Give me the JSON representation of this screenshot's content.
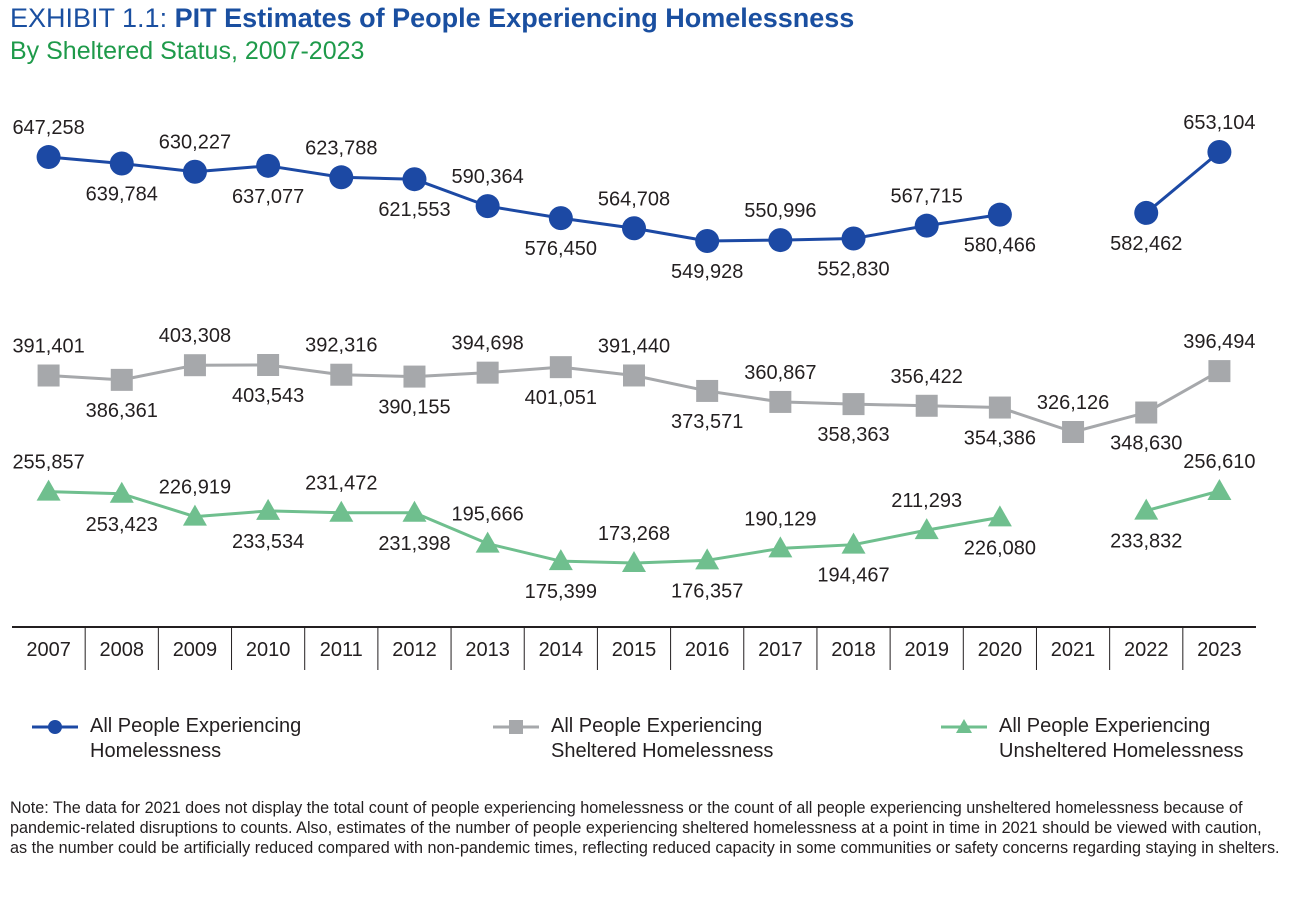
{
  "header": {
    "title_prefix": "EXHIBIT 1.1: ",
    "title_main": "PIT Estimates of People Experiencing Homelessness",
    "subtitle": "By Sheltered Status, 2007-2023"
  },
  "colors": {
    "total": "#1c49a4",
    "sheltered": "#a6a8ab",
    "unsheltered": "#6fbf8e",
    "title": "#1a4fa0",
    "subtitle": "#1e9a4a",
    "axis": "#231f20"
  },
  "chart_data": {
    "type": "line",
    "categories": [
      "2007",
      "2008",
      "2009",
      "2010",
      "2011",
      "2012",
      "2013",
      "2014",
      "2015",
      "2016",
      "2017",
      "2018",
      "2019",
      "2020",
      "2021",
      "2022",
      "2023"
    ],
    "series": [
      {
        "name": "All People Experiencing Homelessness",
        "key": "total",
        "marker": "circle",
        "values": [
          647258,
          639784,
          630227,
          637077,
          623788,
          621553,
          590364,
          576450,
          564708,
          549928,
          550996,
          552830,
          567715,
          580466,
          null,
          582462,
          653104
        ],
        "labels": [
          "647,258",
          "639,784",
          "630,227",
          "637,077",
          "623,788",
          "621,553",
          "590,364",
          "576,450",
          "564,708",
          "549,928",
          "550,996",
          "552,830",
          "567,715",
          "580,466",
          "",
          "582,462",
          "653,104"
        ],
        "label_pos": [
          "above",
          "below",
          "above",
          "below",
          "above",
          "below",
          "above",
          "below",
          "above",
          "below",
          "above",
          "below",
          "above",
          "below",
          "",
          "below",
          "above"
        ]
      },
      {
        "name": "All People Experiencing Sheltered Homelessness",
        "key": "sheltered",
        "marker": "square",
        "values": [
          391401,
          386361,
          403308,
          403543,
          392316,
          390155,
          394698,
          401051,
          391440,
          373571,
          360867,
          358363,
          356422,
          354386,
          326126,
          348630,
          396494
        ],
        "labels": [
          "391,401",
          "386,361",
          "403,308",
          "403,543",
          "392,316",
          "390,155",
          "394,698",
          "401,051",
          "391,440",
          "373,571",
          "360,867",
          "358,363",
          "356,422",
          "354,386",
          "326,126",
          "348,630",
          "396,494"
        ],
        "label_pos": [
          "above",
          "below",
          "above",
          "below",
          "above",
          "below",
          "above",
          "below",
          "above",
          "below",
          "above",
          "below",
          "above",
          "below",
          "above",
          "below",
          "above"
        ]
      },
      {
        "name": "All People Experiencing Unsheltered Homelessness",
        "key": "unsheltered",
        "marker": "triangle",
        "values": [
          255857,
          253423,
          226919,
          233534,
          231472,
          231398,
          195666,
          175399,
          173268,
          176357,
          190129,
          194467,
          211293,
          226080,
          null,
          233832,
          256610
        ],
        "labels": [
          "255,857",
          "253,423",
          "226,919",
          "233,534",
          "231,472",
          "231,398",
          "195,666",
          "175,399",
          "173,268",
          "176,357",
          "190,129",
          "194,467",
          "211,293",
          "226,080",
          "",
          "233,832",
          "256,610"
        ],
        "label_pos": [
          "above",
          "below",
          "above",
          "below",
          "above",
          "below",
          "above",
          "below",
          "above",
          "below",
          "above",
          "below",
          "above",
          "below",
          "",
          "below",
          "above"
        ]
      }
    ],
    "legend": [
      {
        "key": "total",
        "marker": "circle",
        "label": "All People Experiencing Homelessness"
      },
      {
        "key": "sheltered",
        "marker": "square",
        "label": "All People Experiencing Sheltered Homelessness"
      },
      {
        "key": "unsheltered",
        "marker": "triangle",
        "label": "All People Experiencing Unsheltered Homelessness"
      }
    ],
    "legend_position": "bottom",
    "grid": false
  },
  "note": "Note: The data for 2021 does not display the total count of people experiencing homelessness or the count of all people experiencing unsheltered homelessness because of pandemic-related disruptions to counts. Also, estimates of the number of people experiencing sheltered homelessness at a point in time in 2021 should be viewed with caution, as the number could be artificially reduced compared with non-pandemic times, reflecting reduced capacity in some communities or safety concerns regarding staying in shelters."
}
